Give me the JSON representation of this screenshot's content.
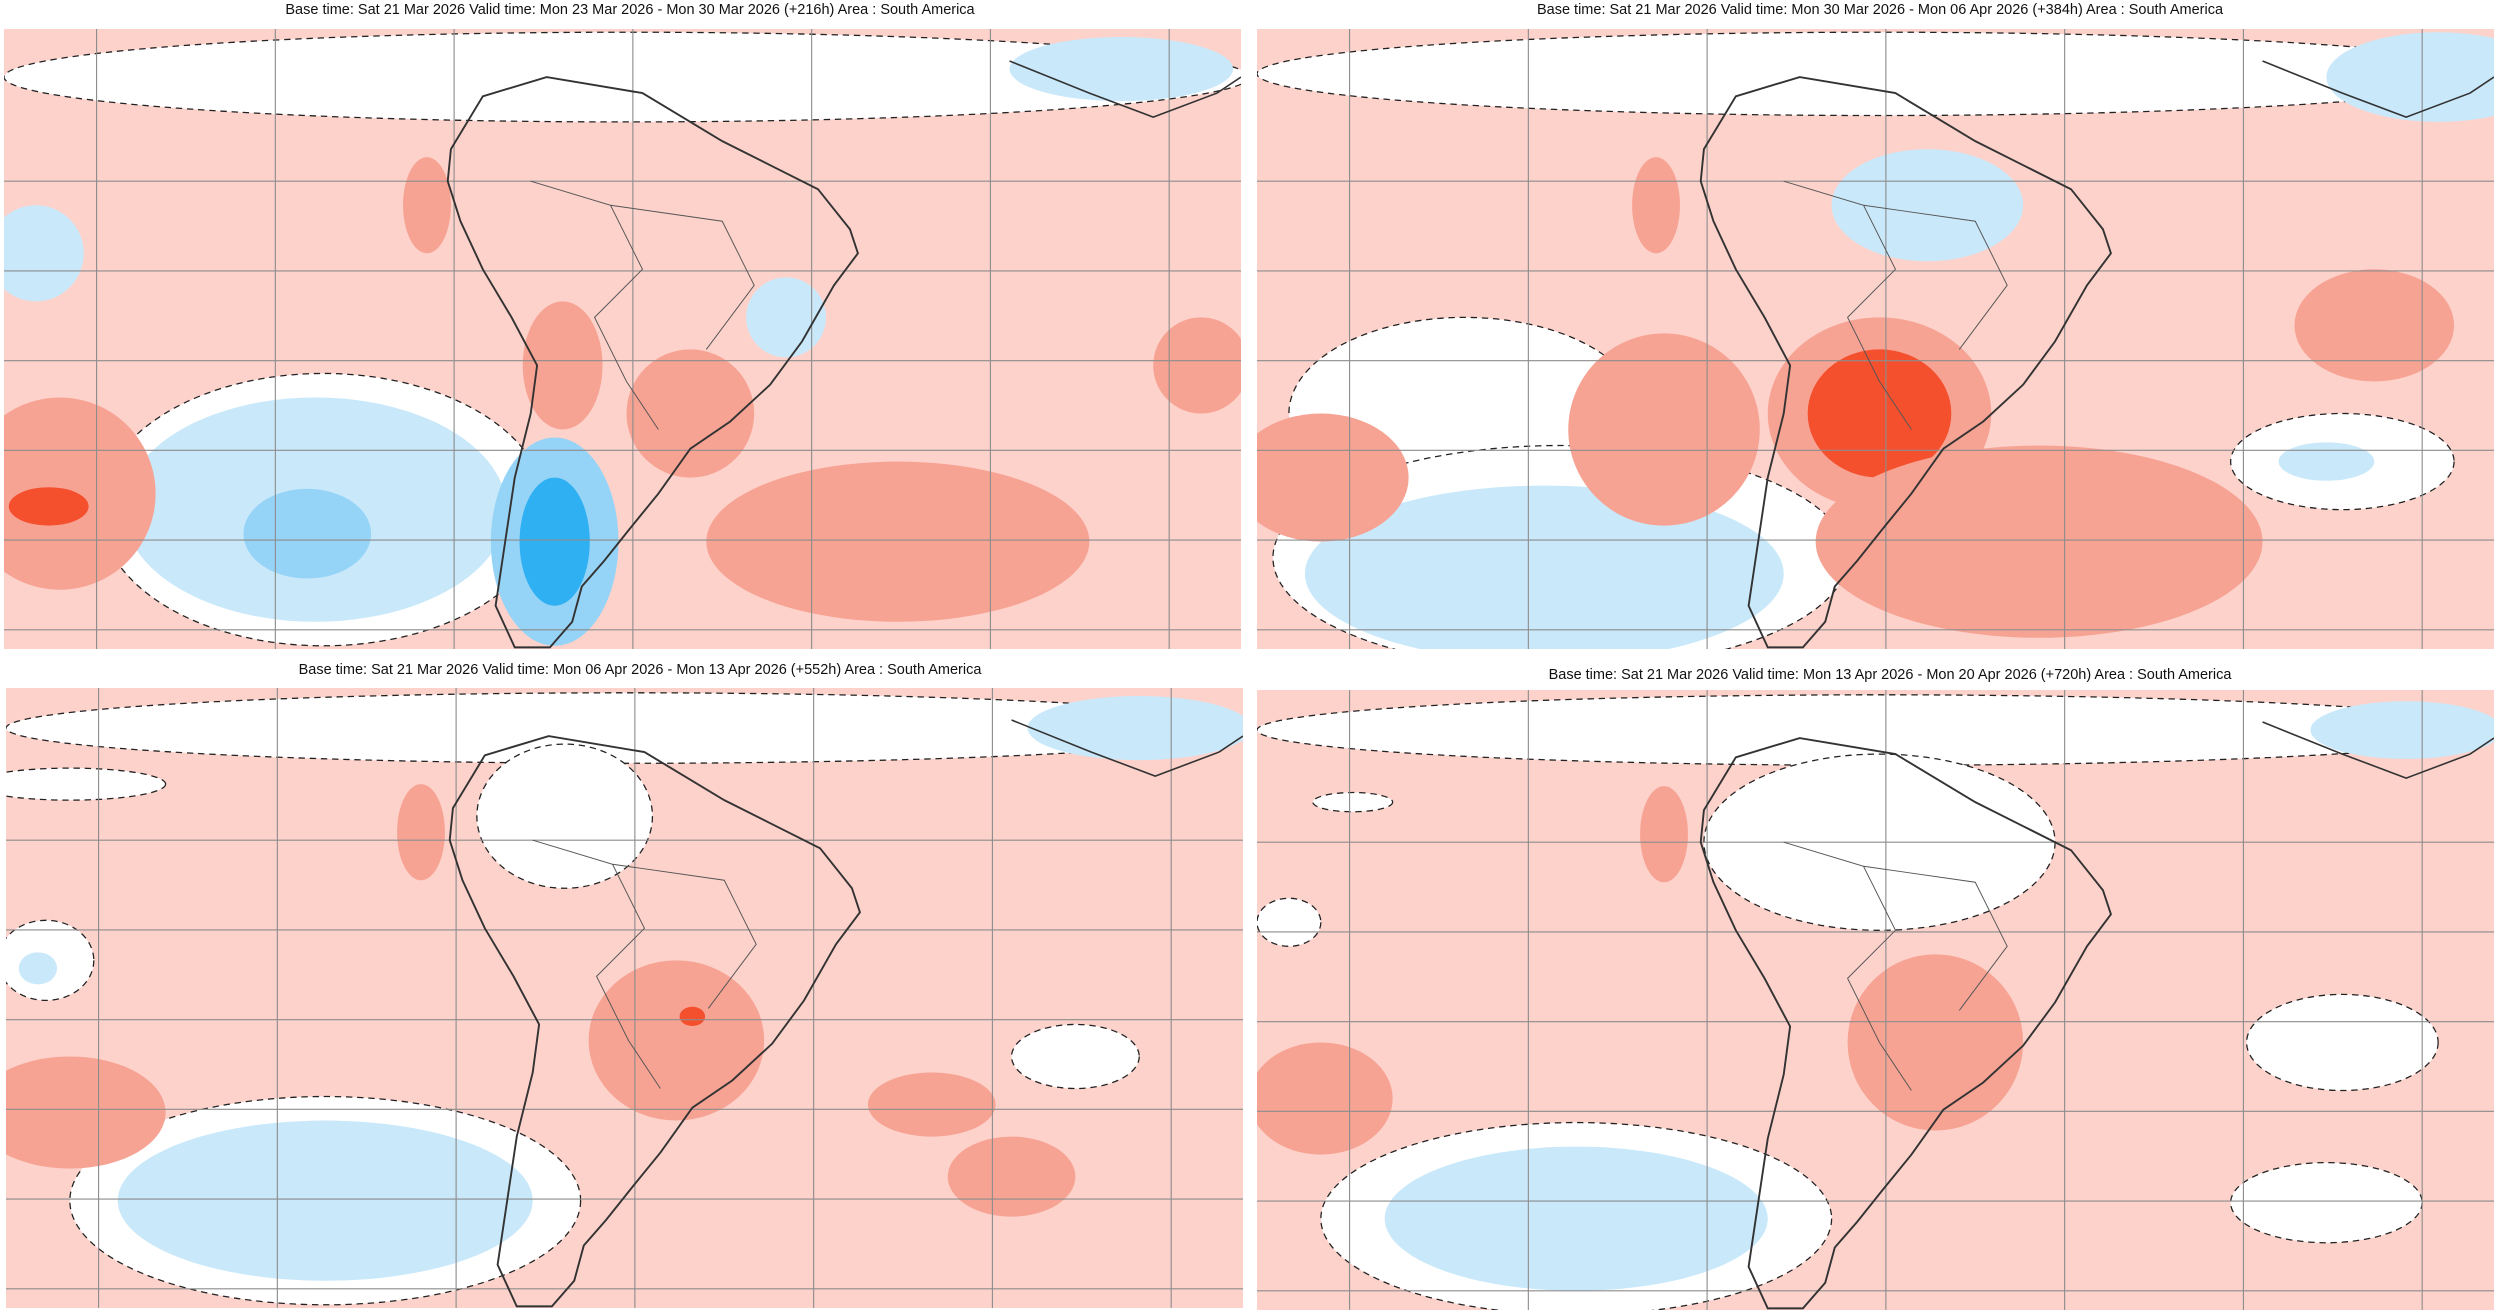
{
  "panels": [
    {
      "title": "Base time: Sat 21 Mar 2026 Valid time: Mon 23 Mar 2026 - Mon 30 Mar 2026 (+216h) Area : South America"
    },
    {
      "title": "Base time: Sat 21 Mar 2026 Valid time: Mon 30 Mar 2026 - Mon 06 Apr 2026 (+384h) Area : South America"
    },
    {
      "title": "Base time: Sat 21 Mar 2026 Valid time: Mon 06 Apr 2026 - Mon 13 Apr 2026 (+552h) Area : South America"
    },
    {
      "title": "Base time: Sat 21 Mar 2026 Valid time: Mon 13 Apr 2026 - Mon 20 Apr 2026 (+720h) Area : South America"
    }
  ],
  "colors": {
    "warm_light": "#fdd2cb",
    "warm_mid": "#f7a394",
    "warm_strong": "#f4502e",
    "cool_light": "#c9e9fb",
    "cool_mid": "#96d4f7",
    "cool_strong": "#2fb0f3",
    "neutral": "#ffffff",
    "grid": "#8c8c8c",
    "coast": "#333333"
  }
}
